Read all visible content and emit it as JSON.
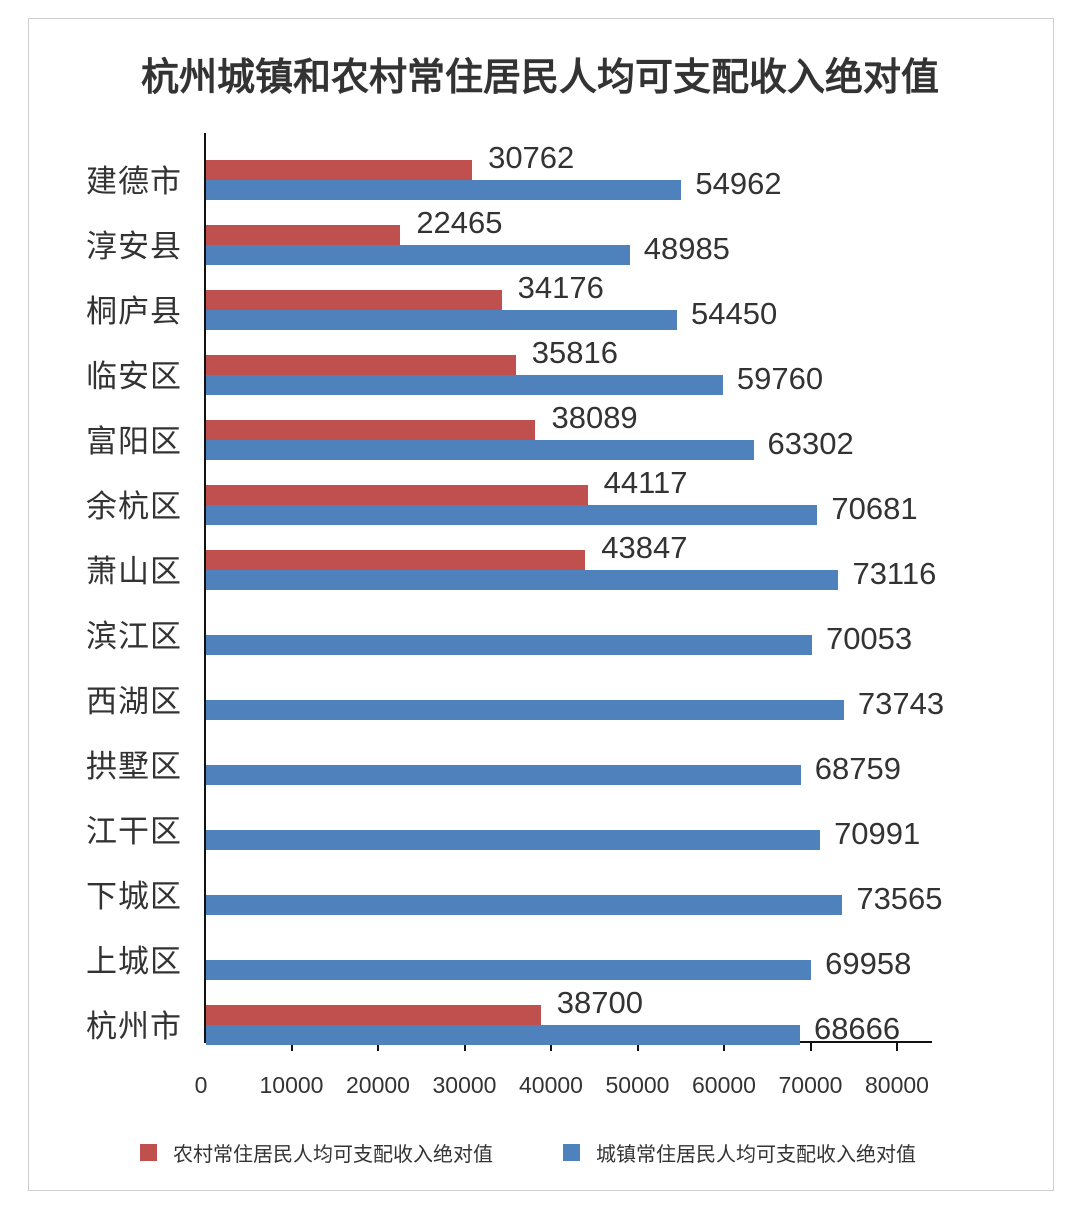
{
  "title": "杭州城镇和农村常住居民人均可支配收入绝对值",
  "colors": {
    "rural": "#c0504d",
    "urban": "#4f81bd"
  },
  "legend": [
    {
      "label": "农村常住居民人均可支配收入绝对值",
      "color": "#c0504d"
    },
    {
      "label": "城镇常住居民人均可支配收入绝对值",
      "color": "#4f81bd"
    }
  ],
  "x_ticks": [
    "0",
    "10000",
    "20000",
    "30000",
    "40000",
    "50000",
    "60000",
    "70000",
    "80000"
  ],
  "chart_data": {
    "type": "bar",
    "orientation": "horizontal",
    "title": "杭州城镇和农村常住居民人均可支配收入绝对值",
    "xlabel": "",
    "ylabel": "",
    "xlim": [
      0,
      80000
    ],
    "grid": false,
    "legend_position": "bottom",
    "categories": [
      "建德市",
      "淳安县",
      "桐庐县",
      "临安区",
      "富阳区",
      "余杭区",
      "萧山区",
      "滨江区",
      "西湖区",
      "拱墅区",
      "江干区",
      "下城区",
      "上城区",
      "杭州市"
    ],
    "series": [
      {
        "name": "农村常住居民人均可支配收入绝对值",
        "color": "#c0504d",
        "values": [
          30762,
          22465,
          34176,
          35816,
          38089,
          44117,
          43847,
          null,
          null,
          null,
          null,
          null,
          null,
          38700
        ]
      },
      {
        "name": "城镇常住居民人均可支配收入绝对值",
        "color": "#4f81bd",
        "values": [
          54962,
          48985,
          54450,
          59760,
          63302,
          70681,
          73116,
          70053,
          73743,
          68759,
          70991,
          73565,
          69958,
          68666
        ]
      }
    ],
    "x_ticks": [
      0,
      10000,
      20000,
      30000,
      40000,
      50000,
      60000,
      70000,
      80000
    ]
  }
}
